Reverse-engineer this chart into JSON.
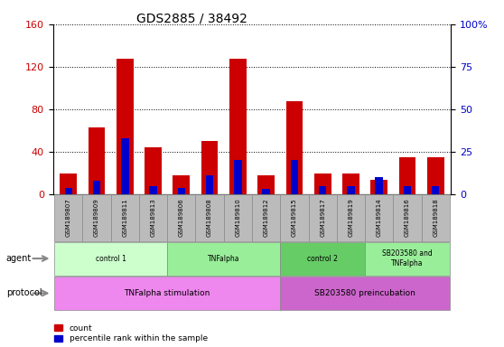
{
  "title": "GDS2885 / 38492",
  "samples": [
    "GSM189807",
    "GSM189809",
    "GSM189811",
    "GSM189813",
    "GSM189806",
    "GSM189808",
    "GSM189810",
    "GSM189812",
    "GSM189815",
    "GSM189817",
    "GSM189819",
    "GSM189814",
    "GSM189816",
    "GSM189818"
  ],
  "count_values": [
    20,
    63,
    128,
    44,
    18,
    50,
    128,
    18,
    88,
    20,
    20,
    14,
    35,
    35
  ],
  "percentile_values": [
    4,
    8,
    33,
    5,
    4,
    11,
    20,
    3,
    20,
    5,
    5,
    10,
    5,
    5
  ],
  "ylim_left": [
    0,
    160
  ],
  "ylim_right": [
    0,
    100
  ],
  "yticks_left": [
    0,
    40,
    80,
    120,
    160
  ],
  "yticks_right": [
    0,
    25,
    50,
    75,
    100
  ],
  "agent_groups": [
    {
      "label": "control 1",
      "start": 0,
      "end": 4,
      "color": "#ccffcc"
    },
    {
      "label": "TNFalpha",
      "start": 4,
      "end": 8,
      "color": "#99ee99"
    },
    {
      "label": "control 2",
      "start": 8,
      "end": 11,
      "color": "#66cc66"
    },
    {
      "label": "SB203580 and\nTNFalpha",
      "start": 11,
      "end": 14,
      "color": "#99ee99"
    }
  ],
  "protocol_groups": [
    {
      "label": "TNFalpha stimulation",
      "start": 0,
      "end": 8,
      "color": "#ee88ee"
    },
    {
      "label": "SB203580 preincubation",
      "start": 8,
      "end": 14,
      "color": "#cc66cc"
    }
  ],
  "bar_color_red": "#cc0000",
  "bar_color_blue": "#0000cc",
  "bar_width": 0.6,
  "grid_color": "black",
  "grid_linestyle": "dotted",
  "left_axis_color": "#cc0000",
  "right_axis_color": "#0000cc",
  "bg_color": "#ffffff",
  "tick_label_bg": "#bbbbbb"
}
